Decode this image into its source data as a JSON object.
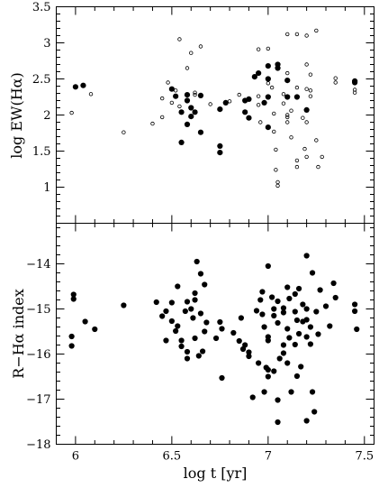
{
  "chart_data": [
    {
      "type": "scatter",
      "panel": "top",
      "ylabel": "log EW(Hα)",
      "xlim": [
        5.9,
        7.55
      ],
      "ylim": [
        0.5,
        3.5
      ],
      "x_ticks": [
        6,
        6.5,
        7,
        7.5
      ],
      "y_ticks": [
        1,
        1.5,
        2,
        2.5,
        3,
        3.5
      ],
      "y_tick_labels": [
        "1",
        "1.5",
        "2",
        "2.5",
        "3",
        "3.5"
      ],
      "grid": false,
      "series": [
        {
          "marker": "filled",
          "points": [
            [
              6.0,
              2.39
            ],
            [
              6.04,
              2.41
            ],
            [
              6.5,
              2.36
            ],
            [
              6.52,
              2.26
            ],
            [
              6.55,
              2.04
            ],
            [
              6.55,
              1.62
            ],
            [
              6.58,
              2.28
            ],
            [
              6.58,
              2.2
            ],
            [
              6.6,
              2.1
            ],
            [
              6.6,
              1.98
            ],
            [
              6.58,
              1.87
            ],
            [
              6.65,
              1.76
            ],
            [
              6.65,
              2.27
            ],
            [
              6.62,
              2.04
            ],
            [
              6.75,
              2.08
            ],
            [
              6.78,
              2.17
            ],
            [
              6.75,
              1.57
            ],
            [
              6.75,
              1.48
            ],
            [
              6.88,
              2.04
            ],
            [
              6.88,
              2.2
            ],
            [
              6.9,
              2.22
            ],
            [
              6.9,
              1.96
            ],
            [
              6.93,
              2.53
            ],
            [
              6.95,
              2.58
            ],
            [
              7.0,
              2.68
            ],
            [
              7.0,
              2.5
            ],
            [
              7.0,
              2.25
            ],
            [
              6.98,
              2.17
            ],
            [
              7.0,
              1.83
            ],
            [
              7.05,
              2.7
            ],
            [
              7.05,
              2.65
            ],
            [
              7.1,
              2.48
            ],
            [
              7.1,
              2.25
            ],
            [
              7.15,
              2.25
            ],
            [
              7.2,
              2.07
            ],
            [
              7.45,
              2.47
            ],
            [
              7.45,
              2.45
            ]
          ]
        },
        {
          "marker": "open",
          "points": [
            [
              5.98,
              2.03
            ],
            [
              6.08,
              2.29
            ],
            [
              6.25,
              1.76
            ],
            [
              6.4,
              1.88
            ],
            [
              6.45,
              1.97
            ],
            [
              6.45,
              2.23
            ],
            [
              6.48,
              2.45
            ],
            [
              6.5,
              2.17
            ],
            [
              6.52,
              2.34
            ],
            [
              6.54,
              3.05
            ],
            [
              6.54,
              2.12
            ],
            [
              6.58,
              2.65
            ],
            [
              6.6,
              2.86
            ],
            [
              6.62,
              2.31
            ],
            [
              6.62,
              2.28
            ],
            [
              6.65,
              2.95
            ],
            [
              6.7,
              2.15
            ],
            [
              6.8,
              2.19
            ],
            [
              6.85,
              2.28
            ],
            [
              6.95,
              2.91
            ],
            [
              6.95,
              2.26
            ],
            [
              6.95,
              2.14
            ],
            [
              6.96,
              1.9
            ],
            [
              7.0,
              2.92
            ],
            [
              7.0,
              2.44
            ],
            [
              7.02,
              2.38
            ],
            [
              7.03,
              2.02
            ],
            [
              7.03,
              1.77
            ],
            [
              7.04,
              1.52
            ],
            [
              7.04,
              1.24
            ],
            [
              7.05,
              1.07
            ],
            [
              7.05,
              1.02
            ],
            [
              7.08,
              2.29
            ],
            [
              7.08,
              2.16
            ],
            [
              7.1,
              3.12
            ],
            [
              7.1,
              2.58
            ],
            [
              7.1,
              2.0
            ],
            [
              7.1,
              1.97
            ],
            [
              7.1,
              1.9
            ],
            [
              7.12,
              2.06
            ],
            [
              7.12,
              1.69
            ],
            [
              7.15,
              3.12
            ],
            [
              7.15,
              2.38
            ],
            [
              7.15,
              1.37
            ],
            [
              7.15,
              1.28
            ],
            [
              7.18,
              1.96
            ],
            [
              7.19,
              1.53
            ],
            [
              7.2,
              3.1
            ],
            [
              7.2,
              2.7
            ],
            [
              7.2,
              2.36
            ],
            [
              7.2,
              1.9
            ],
            [
              7.2,
              1.42
            ],
            [
              7.22,
              2.56
            ],
            [
              7.22,
              2.34
            ],
            [
              7.22,
              2.26
            ],
            [
              7.25,
              3.17
            ],
            [
              7.25,
              1.65
            ],
            [
              7.26,
              1.28
            ],
            [
              7.28,
              1.42
            ],
            [
              7.35,
              2.51
            ],
            [
              7.35,
              2.45
            ],
            [
              7.45,
              2.35
            ],
            [
              7.45,
              2.31
            ]
          ]
        }
      ]
    },
    {
      "type": "scatter",
      "panel": "bottom",
      "xlabel": "log t [yr]",
      "ylabel": "R−Hα index",
      "xlim": [
        5.9,
        7.55
      ],
      "ylim": [
        -18,
        -13.1
      ],
      "x_ticks": [
        6,
        6.5,
        7,
        7.5
      ],
      "x_tick_labels": [
        "6",
        "6.5",
        "7",
        "7.5"
      ],
      "y_ticks": [
        -18,
        -17,
        -16,
        -15,
        -14
      ],
      "y_tick_labels": [
        "−18",
        "−17",
        "−16",
        "−15",
        "−14"
      ],
      "grid": false,
      "series": [
        {
          "marker": "filled",
          "points": [
            [
              5.99,
              -14.68
            ],
            [
              5.99,
              -14.78
            ],
            [
              5.98,
              -15.61
            ],
            [
              5.98,
              -15.82
            ],
            [
              6.05,
              -15.28
            ],
            [
              6.1,
              -15.45
            ],
            [
              6.25,
              -14.92
            ],
            [
              6.42,
              -14.85
            ],
            [
              6.45,
              -15.16
            ],
            [
              6.47,
              -15.05
            ],
            [
              6.47,
              -15.7
            ],
            [
              6.5,
              -14.86
            ],
            [
              6.5,
              -15.27
            ],
            [
              6.52,
              -15.49
            ],
            [
              6.53,
              -14.5
            ],
            [
              6.53,
              -15.38
            ],
            [
              6.55,
              -15.7
            ],
            [
              6.55,
              -15.83
            ],
            [
              6.57,
              -15.05
            ],
            [
              6.58,
              -14.84
            ],
            [
              6.58,
              -15.95
            ],
            [
              6.58,
              -16.1
            ],
            [
              6.6,
              -15.0
            ],
            [
              6.61,
              -15.2
            ],
            [
              6.62,
              -14.8
            ],
            [
              6.62,
              -14.65
            ],
            [
              6.62,
              -15.65
            ],
            [
              6.63,
              -13.95
            ],
            [
              6.64,
              -16.04
            ],
            [
              6.65,
              -15.1
            ],
            [
              6.65,
              -14.22
            ],
            [
              6.66,
              -15.94
            ],
            [
              6.67,
              -14.46
            ],
            [
              6.67,
              -15.5
            ],
            [
              6.68,
              -15.3
            ],
            [
              6.73,
              -15.65
            ],
            [
              6.75,
              -15.29
            ],
            [
              6.76,
              -15.44
            ],
            [
              6.76,
              -16.53
            ],
            [
              6.82,
              -15.53
            ],
            [
              6.85,
              -15.71
            ],
            [
              6.86,
              -15.2
            ],
            [
              6.87,
              -15.89
            ],
            [
              6.88,
              -15.8
            ],
            [
              6.9,
              -15.96
            ],
            [
              6.9,
              -16.05
            ],
            [
              6.92,
              -16.96
            ],
            [
              6.94,
              -15.04
            ],
            [
              6.95,
              -16.2
            ],
            [
              6.96,
              -14.8
            ],
            [
              6.97,
              -14.62
            ],
            [
              6.97,
              -15.12
            ],
            [
              6.98,
              -15.4
            ],
            [
              6.98,
              -16.84
            ],
            [
              6.99,
              -16.3
            ],
            [
              7.0,
              -14.05
            ],
            [
              7.0,
              -15.62
            ],
            [
              7.0,
              -15.7
            ],
            [
              7.0,
              -16.35
            ],
            [
              7.0,
              -16.5
            ],
            [
              7.02,
              -14.74
            ],
            [
              7.03,
              -15.0
            ],
            [
              7.03,
              -15.15
            ],
            [
              7.03,
              -16.38
            ],
            [
              7.05,
              -14.83
            ],
            [
              7.05,
              -15.31
            ],
            [
              7.05,
              -17.02
            ],
            [
              7.05,
              -17.51
            ],
            [
              7.06,
              -16.1
            ],
            [
              7.08,
              -14.98
            ],
            [
              7.08,
              -15.08
            ],
            [
              7.08,
              -15.8
            ],
            [
              7.08,
              -15.98
            ],
            [
              7.1,
              -14.52
            ],
            [
              7.1,
              -15.44
            ],
            [
              7.1,
              -16.2
            ],
            [
              7.11,
              -14.77
            ],
            [
              7.11,
              -15.64
            ],
            [
              7.12,
              -16.84
            ],
            [
              7.14,
              -14.67
            ],
            [
              7.14,
              -15.06
            ],
            [
              7.14,
              -15.79
            ],
            [
              7.15,
              -15.25
            ],
            [
              7.15,
              -16.49
            ],
            [
              7.16,
              -14.55
            ],
            [
              7.16,
              -15.55
            ],
            [
              7.17,
              -16.28
            ],
            [
              7.18,
              -14.9
            ],
            [
              7.18,
              -15.28
            ],
            [
              7.2,
              -13.82
            ],
            [
              7.2,
              -15.0
            ],
            [
              7.2,
              -15.24
            ],
            [
              7.2,
              -15.62
            ],
            [
              7.2,
              -17.48
            ],
            [
              7.22,
              -15.4
            ],
            [
              7.22,
              -15.78
            ],
            [
              7.23,
              -14.2
            ],
            [
              7.23,
              -16.84
            ],
            [
              7.24,
              -17.28
            ],
            [
              7.25,
              -15.06
            ],
            [
              7.26,
              -15.56
            ],
            [
              7.27,
              -14.58
            ],
            [
              7.3,
              -14.94
            ],
            [
              7.32,
              -15.38
            ],
            [
              7.34,
              -14.43
            ],
            [
              7.35,
              -14.75
            ],
            [
              7.45,
              -14.9
            ],
            [
              7.45,
              -15.05
            ],
            [
              7.46,
              -15.45
            ]
          ]
        }
      ]
    }
  ]
}
